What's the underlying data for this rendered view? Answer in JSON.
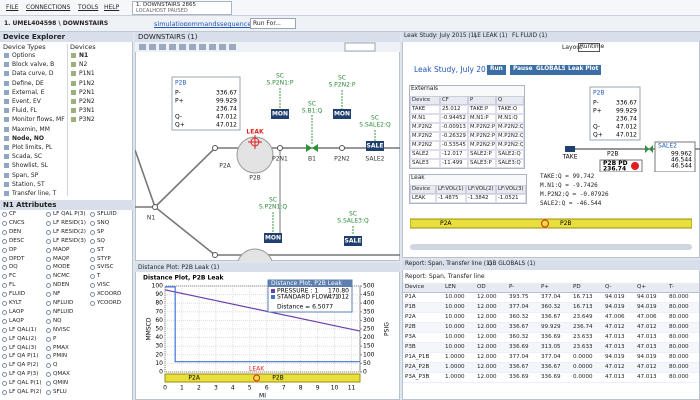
{
  "menu": [
    "FILE",
    "CONNECTIONS",
    "TOOLS",
    "HELP"
  ],
  "session": {
    "title": "1. DOWNSTAIRS 2865",
    "status": "LOCALHOST PAUSED"
  },
  "toolbar": {
    "path": "1. UMEL404598 \\ DOWNSTAIRS",
    "links": [
      "simulation",
      "commands",
      "sequences"
    ],
    "run": "Run For..."
  },
  "explorer": {
    "title": "Device Explorer",
    "types_header": "Device Types",
    "devices_header": "Devices",
    "types": [
      "Options",
      "Block valve, B",
      "Data curve, D",
      "Define, DE",
      "External, E",
      "Event, EV",
      "Fluid, FL",
      "Monitor flows, MF",
      "Maxmin, MM",
      "Node, NO",
      "Plot limits, PL",
      "Scada, SC",
      "Showlist, SL",
      "Span, SP",
      "Station, ST",
      "Transfer line, T"
    ],
    "devices": [
      "N1",
      "N2",
      "P1N1",
      "P1N2",
      "P2N1",
      "P2N2",
      "P3N1",
      "P3N2"
    ],
    "attributes_title": "N1 Attributes",
    "attributes": [
      [
        "CF",
        "CNCS",
        "DEN",
        "DESC",
        "DP",
        "DPDT",
        "DQ",
        "FC",
        "FL",
        "FLUID",
        "KYLT",
        "LAOP",
        "LAQP",
        "LF QAL(1)",
        "LF QAL(2)",
        "LF QAL(3)",
        "LF QA P(1)",
        "LF QA P(2)",
        "LF QA P(3)",
        "LF QAL P(1)",
        "LF QAL P(2)"
      ],
      [
        "LF QAL P(3)",
        "LF RESID(1)",
        "LF RESID(2)",
        "LF RESID(3)",
        "MAOP",
        "MAQP",
        "MODE",
        "NCMC",
        "NDEN",
        "NF",
        "NFLUID",
        "NFLUID",
        "NQ",
        "NVISC",
        "P",
        "PMAX",
        "PMIN",
        "Q",
        "QMAX",
        "QMIN",
        "SFLU"
      ],
      [
        "SFLUID",
        "SNQ",
        "SP",
        "SQ",
        "ST",
        "STYP",
        "SVISC",
        "T",
        "VISC",
        "XCOORD",
        "YCOORD"
      ]
    ]
  },
  "diagram": {
    "tab": "DOWNSTAIRS (1)",
    "box": {
      "title": "P2B",
      "rows": [
        {
          "label": "P-",
          "value": "336.67"
        },
        {
          "label": "P+",
          "value": "99.929"
        },
        {
          "value": "236.74"
        },
        {
          "label": "Q-",
          "value": "47.012"
        },
        {
          "label": "Q+",
          "value": "47.012"
        }
      ]
    },
    "labels": [
      "SC",
      "S.P2N1:P",
      "MON",
      "SC",
      "S.B1:Q",
      "B1",
      "MON",
      "SC",
      "S.P2N2:P",
      "P2N2",
      "SC",
      "S.SALE2:Q",
      "SALE",
      "SALE2",
      "P2N1",
      "P2A",
      "LEAK",
      "N1",
      "SC",
      "S.P2N1:Q",
      "MON",
      "SC",
      "S.SALE3:Q",
      "SALE",
      "P2B"
    ]
  },
  "chart_data": {
    "type": "line",
    "tab": "Distance Plot: P2B Leak (1)",
    "title": "Distance Plot, P2B Leak",
    "x_label": "MI",
    "y_label": "MMSCD",
    "y2_label": "PSIG",
    "xlim": [
      0,
      11.5
    ],
    "xticks": [
      0,
      1,
      2,
      3,
      4,
      5,
      6,
      7,
      8,
      9,
      10,
      11
    ],
    "ylim": [
      0,
      100
    ],
    "yticks": [
      0,
      10,
      20,
      30,
      40,
      50,
      60,
      70,
      80,
      90,
      100
    ],
    "y2lim": [
      0,
      500
    ],
    "y2ticks": [
      0,
      50,
      100,
      150,
      200,
      250,
      300,
      350,
      400,
      450,
      500
    ],
    "grid": true,
    "series": [
      {
        "name": "PRESSURE : 1",
        "color": "#6b3fa8",
        "axis": "y2",
        "x": [
          0,
          11.5
        ],
        "values": [
          478,
          238
        ]
      },
      {
        "name": "STANDARD FLOW : 1",
        "color": "#3f74d8",
        "x": [
          0,
          0.6,
          0.6,
          11.5
        ],
        "values": [
          99,
          99,
          12,
          12
        ]
      }
    ],
    "legend_title": "Distance Plot, P2B Leak",
    "legend_values": [
      "170.80",
      "47.012"
    ],
    "annotation": "Distance = 6.5077",
    "strip_labels": [
      "P2A",
      "P2B"
    ],
    "leak_label": "LEAK"
  },
  "leak_study": {
    "tabs": [
      "Leak Study: July 2015 (1)",
      "LE LEAK (1)",
      "FL FLUID (1)"
    ],
    "layout": "Layout",
    "runtime": "Runtime",
    "title": "Leak Study, July 2015",
    "buttons": [
      "Run",
      "Pause",
      "GLOBALS",
      "Leak Plot"
    ],
    "externals": {
      "title": "Externals",
      "columns": [
        "Device",
        "CF",
        "P",
        "Q"
      ],
      "rows": [
        [
          "TAKE",
          "25.012",
          "TAKE:P",
          "TAKE:Q"
        ],
        [
          "M.N1",
          "-0.94452",
          "M.N1:P",
          "M.N1:Q"
        ],
        [
          "M.P2N2",
          "-0.00913",
          "M.P2N2:P",
          "M.P2N2:Q"
        ],
        [
          "M.P2N2",
          "-0.26329",
          "M.P2N2:P",
          "M.P2N2:Q"
        ],
        [
          "M.P2N2",
          "-0.53545",
          "M.P2N2:P",
          "M.P2N2:Q"
        ],
        [
          "SALE2",
          "-12.017",
          "SALE2:P",
          "SALE2:Q"
        ],
        [
          "SALE3",
          "-11.499",
          "SALE3:P",
          "SALE3:Q"
        ]
      ]
    },
    "leak": {
      "title": "Leak",
      "columns": [
        "Device",
        "LF:VOL(1)",
        "LF:VOL(2)",
        "LF:VOL(3)"
      ],
      "rows": [
        [
          "LEAK",
          "-1.4875",
          "-1.3842",
          "-1.0521"
        ]
      ]
    },
    "readouts": [
      "TAKE:Q = 99.742",
      "M.N1:Q = -9.7426",
      "M.P2N2:Q = -0.07926",
      "SALE2:Q = -46.544"
    ],
    "box": {
      "title": "P2B",
      "rows": [
        {
          "label": "P-",
          "value": "336.67"
        },
        {
          "label": "P+",
          "value": "99.929"
        },
        {
          "value": "236.74"
        },
        {
          "label": "Q-",
          "value": "47.012"
        },
        {
          "label": "Q+",
          "value": "47.012"
        }
      ]
    },
    "take": "TAKE",
    "pipe": "P2B",
    "pd_title": "P2B PD",
    "pd_value": "236.74",
    "sale": {
      "title": "SALE2",
      "values": [
        "99.962",
        "46.544",
        "46.544"
      ]
    },
    "strip": [
      "P2A",
      "P2B"
    ]
  },
  "report": {
    "tabs": [
      "Report: Span, Transfer line (1)",
      "GB GLOBALS (1)"
    ],
    "title": "Report: Span, Transfer line",
    "columns": [
      "Device",
      "LEN",
      "OD",
      "P-",
      "P+",
      "PD",
      "Q-",
      "Q+",
      "T-"
    ],
    "rows": [
      [
        "P1A",
        "10.000",
        "12.000",
        "393.75",
        "377.04",
        "16.713",
        "94.019",
        "94.019",
        "80.000"
      ],
      [
        "P1B",
        "10.000",
        "12.000",
        "377.04",
        "360.32",
        "16.713",
        "94.019",
        "94.019",
        "80.000"
      ],
      [
        "P2A",
        "10.000",
        "12.000",
        "360.32",
        "336.67",
        "23.649",
        "47.006",
        "47.006",
        "80.000"
      ],
      [
        "P2B",
        "10.000",
        "12.000",
        "336.67",
        "99.929",
        "236.74",
        "47.012",
        "47.012",
        "80.000"
      ],
      [
        "P3A",
        "10.000",
        "12.000",
        "360.32",
        "336.69",
        "23.633",
        "47.013",
        "47.013",
        "80.000"
      ],
      [
        "P3B",
        "10.000",
        "12.000",
        "336.69",
        "313.05",
        "23.633",
        "47.013",
        "47.013",
        "80.000"
      ],
      [
        "P1A_P1B",
        "1.0000",
        "12.000",
        "377.04",
        "377.04",
        "0.0000",
        "94.019",
        "94.019",
        "80.000"
      ],
      [
        "P2A_P2B",
        "1.0000",
        "12.000",
        "336.67",
        "336.67",
        "0.0000",
        "47.012",
        "47.012",
        "80.000"
      ],
      [
        "P3A_P3B",
        "1.0000",
        "12.000",
        "336.69",
        "336.69",
        "0.0000",
        "47.013",
        "47.013",
        "80.000"
      ]
    ]
  }
}
